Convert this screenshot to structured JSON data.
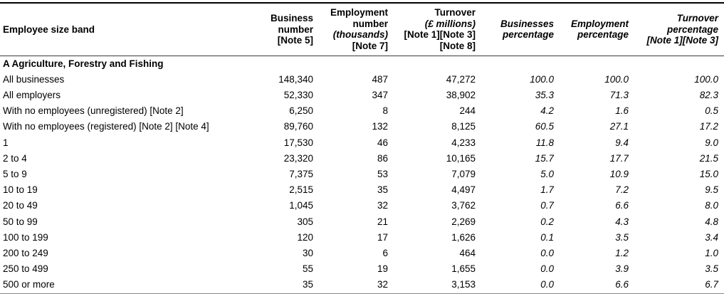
{
  "colors": {
    "text": "#000000",
    "background": "#ffffff",
    "rule": "#000000"
  },
  "table": {
    "section": "A Agriculture, Forestry and Fishing",
    "columns": [
      {
        "id": "band",
        "align": "left",
        "lines": [
          {
            "text": "Employee size band",
            "italic": false
          }
        ]
      },
      {
        "id": "business_number",
        "align": "right",
        "lines": [
          {
            "text": "Business",
            "italic": false
          },
          {
            "text": "number",
            "italic": false
          },
          {
            "text": "[Note 5]",
            "italic": false
          }
        ]
      },
      {
        "id": "employment_number",
        "align": "right",
        "lines": [
          {
            "text": "Employment",
            "italic": false
          },
          {
            "text": "number",
            "italic": false
          },
          {
            "text": "(thousands)",
            "italic": true
          },
          {
            "text": "[Note 7]",
            "italic": false
          }
        ]
      },
      {
        "id": "turnover",
        "align": "right",
        "lines": [
          {
            "text": "Turnover",
            "italic": false
          },
          {
            "text": "(£ millions)",
            "italic": true
          },
          {
            "text": "[Note 1][Note 3]",
            "italic": false
          },
          {
            "text": "[Note 8]",
            "italic": false
          }
        ]
      },
      {
        "id": "businesses_percentage",
        "align": "right",
        "lines": [
          {
            "text": "Businesses",
            "italic": true
          },
          {
            "text": "percentage",
            "italic": true
          }
        ]
      },
      {
        "id": "employment_percentage",
        "align": "right",
        "lines": [
          {
            "text": "Employment",
            "italic": true
          },
          {
            "text": "percentage",
            "italic": true
          }
        ]
      },
      {
        "id": "turnover_percentage",
        "align": "right",
        "lines": [
          {
            "text": "Turnover",
            "italic": true
          },
          {
            "text": "percentage",
            "italic": true
          },
          {
            "text": "[Note 1][Note 3]",
            "italic": true
          }
        ]
      }
    ],
    "rows": [
      {
        "band": "All businesses",
        "values": [
          "148,340",
          "487",
          "47,272",
          "100.0",
          "100.0",
          "100.0"
        ]
      },
      {
        "band": "All employers",
        "values": [
          "52,330",
          "347",
          "38,902",
          "35.3",
          "71.3",
          "82.3"
        ]
      },
      {
        "band": "With no employees (unregistered) [Note 2]",
        "values": [
          "6,250",
          "8",
          "244",
          "4.2",
          "1.6",
          "0.5"
        ]
      },
      {
        "band": "With no employees (registered) [Note 2] [Note 4]",
        "values": [
          "89,760",
          "132",
          "8,125",
          "60.5",
          "27.1",
          "17.2"
        ]
      },
      {
        "band": "1",
        "values": [
          "17,530",
          "46",
          "4,233",
          "11.8",
          "9.4",
          "9.0"
        ]
      },
      {
        "band": "2 to 4",
        "values": [
          "23,320",
          "86",
          "10,165",
          "15.7",
          "17.7",
          "21.5"
        ]
      },
      {
        "band": "5 to 9",
        "values": [
          "7,375",
          "53",
          "7,079",
          "5.0",
          "10.9",
          "15.0"
        ]
      },
      {
        "band": "10 to 19",
        "values": [
          "2,515",
          "35",
          "4,497",
          "1.7",
          "7.2",
          "9.5"
        ]
      },
      {
        "band": "20 to 49",
        "values": [
          "1,045",
          "32",
          "3,762",
          "0.7",
          "6.6",
          "8.0"
        ]
      },
      {
        "band": "50 to 99",
        "values": [
          "305",
          "21",
          "2,269",
          "0.2",
          "4.3",
          "4.8"
        ]
      },
      {
        "band": "100 to 199",
        "values": [
          "120",
          "17",
          "1,626",
          "0.1",
          "3.5",
          "3.4"
        ]
      },
      {
        "band": "200 to 249",
        "values": [
          "30",
          "6",
          "464",
          "0.0",
          "1.2",
          "1.0"
        ]
      },
      {
        "band": "250 to 499",
        "values": [
          "55",
          "19",
          "1,655",
          "0.0",
          "3.9",
          "3.5"
        ]
      },
      {
        "band": "500 or more",
        "values": [
          "35",
          "32",
          "3,153",
          "0.0",
          "6.6",
          "6.7"
        ]
      }
    ]
  }
}
